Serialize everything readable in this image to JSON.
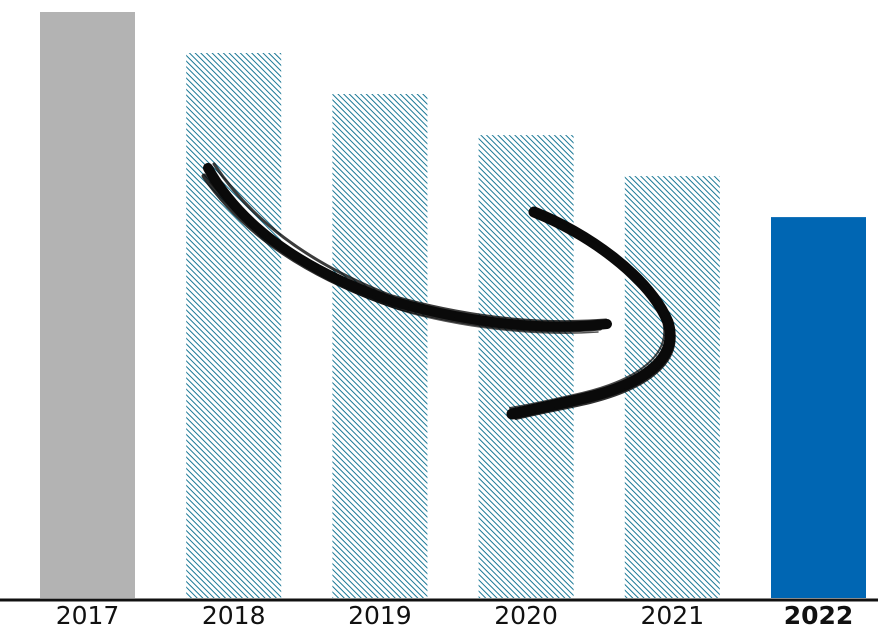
{
  "chart_data": {
    "type": "bar",
    "title": "",
    "xlabel": "",
    "ylabel": "",
    "categories": [
      "2017",
      "2018",
      "2019",
      "2020",
      "2021",
      "2022"
    ],
    "values": [
      100,
      93,
      86,
      79,
      72,
      65
    ],
    "ylim": [
      0,
      100
    ],
    "grid": false,
    "legend": "none",
    "highlight_category": "2022",
    "bar_styles": [
      "solid-gray",
      "hatched",
      "hatched",
      "hatched",
      "hatched",
      "solid-blue"
    ],
    "colors": {
      "baseline_bar": "#b3b3b3",
      "hatch": "#1a7896",
      "highlight_bar": "#0066b3",
      "axis": "#111111",
      "arrow": "#0a0a0a"
    },
    "annotation": {
      "type": "curved-arrow",
      "direction": "downward-trend",
      "icon": "brush-arrow-icon"
    }
  }
}
